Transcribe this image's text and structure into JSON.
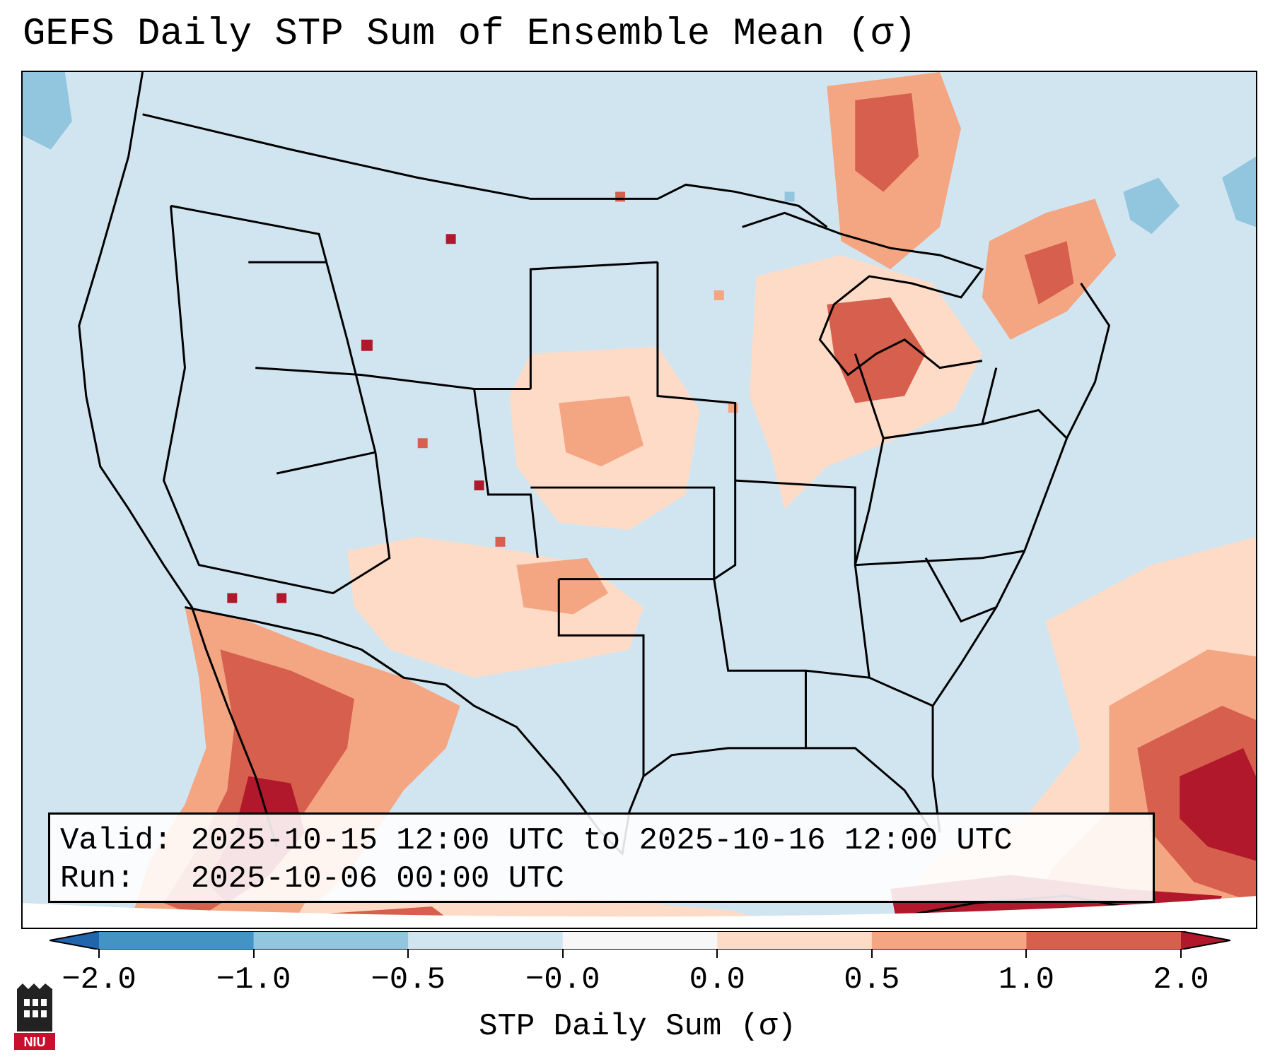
{
  "title": "GEFS Daily STP Sum of Ensemble Mean (σ)",
  "info": {
    "valid_label": "Valid:",
    "valid_text": "2025-10-15 12:00 UTC to 2025-10-16 12:00 UTC",
    "run_label": "Run:",
    "run_text": "2025-10-06 00:00 UTC"
  },
  "colorbar": {
    "label": "STP Daily Sum (σ)",
    "ticks": [
      "−2.0",
      "−1.0",
      "−0.5",
      "−0.0",
      "0.0",
      "0.5",
      "1.0",
      "2.0"
    ],
    "colors": [
      "#2166ac",
      "#4393c3",
      "#92c5de",
      "#d1e5f0",
      "#f7f7f7",
      "#fddbc7",
      "#f4a582",
      "#d6604d",
      "#b2182b"
    ]
  },
  "logo": {
    "text": "NIU",
    "icon": "niu-logo-icon"
  },
  "map": {
    "background_color": "#d1e5f0",
    "high_regions": [
      "Mexico / Arizona border",
      "Southern Plains",
      "Central Plains",
      "Upper Midwest / Great Lakes",
      "Ontario / Quebec",
      "Western Atlantic near Bahamas",
      "Cuba"
    ],
    "low_regions": [
      "Pacific Northwest offshore",
      "Eastern Canada"
    ]
  }
}
